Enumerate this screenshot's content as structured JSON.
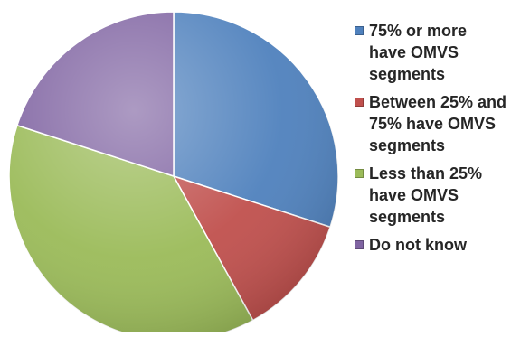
{
  "chart_data": {
    "type": "pie",
    "title": "",
    "start_angle_deg": 0,
    "direction": "clockwise",
    "slices": [
      {
        "label": "75% or more have OMVS segments",
        "value": 30,
        "color": "#4f81bd"
      },
      {
        "label": "Between 25% and 75% have OMVS segments",
        "value": 12,
        "color": "#c0504d"
      },
      {
        "label": "Less than 25% have OMVS segments",
        "value": 38,
        "color": "#9bbb59"
      },
      {
        "label": "Do not know",
        "value": 20,
        "color": "#8064a2"
      }
    ],
    "legend": {
      "position": "right",
      "items": [
        {
          "label": "75% or more have OMVS segments",
          "color": "#4f81bd"
        },
        {
          "label": "Between 25% and 75% have OMVS segments",
          "color": "#c0504d"
        },
        {
          "label": "Less than 25% have OMVS segments",
          "color": "#9bbb59"
        },
        {
          "label": "Do not know",
          "color": "#8064a2"
        }
      ]
    }
  }
}
